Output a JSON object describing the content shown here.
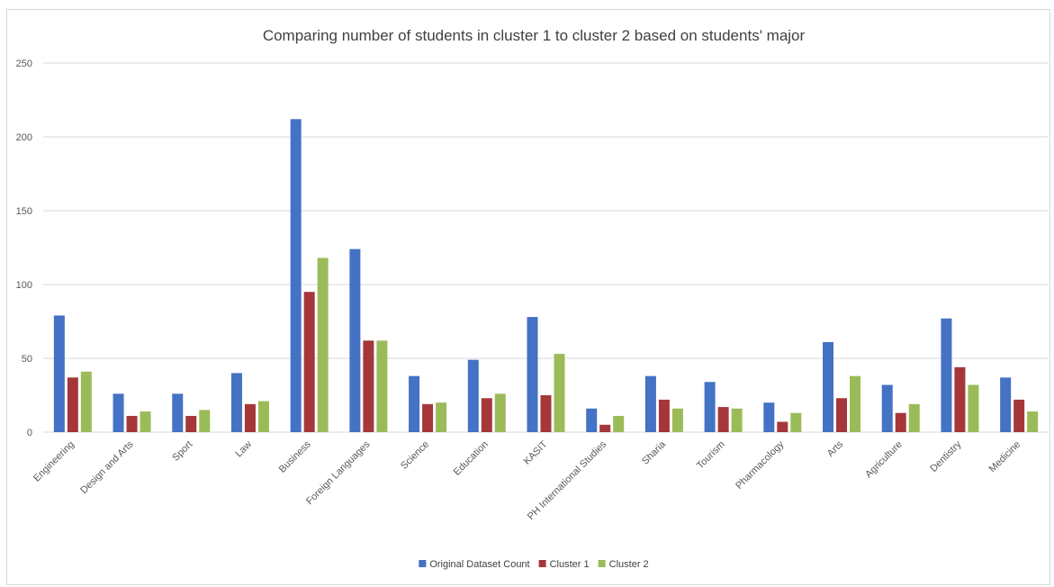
{
  "chart_data": {
    "type": "bar",
    "title": "Comparing number of students in cluster 1 to cluster 2 based on students' major",
    "xlabel": "",
    "ylabel": "",
    "ylim": [
      0,
      250
    ],
    "yticks": [
      0,
      50,
      100,
      150,
      200,
      250
    ],
    "grid": true,
    "legend_position": "bottom",
    "categories": [
      "Engineering",
      "Design and Arts",
      "Sport",
      "Law",
      "Business",
      "Foreign Languages",
      "Science",
      "Education",
      "KASIT",
      "PH International Studies",
      "Sharia",
      "Tourism",
      "Pharmacology",
      "Arts",
      "Agriculture",
      "Dentistry",
      "Medicine"
    ],
    "series": [
      {
        "name": "Original Dataset Count",
        "color": "#4472C4",
        "values": [
          79,
          26,
          26,
          40,
          212,
          124,
          38,
          49,
          78,
          16,
          38,
          34,
          20,
          61,
          32,
          77,
          37
        ]
      },
      {
        "name": "Cluster 1",
        "color": "#A5373A",
        "values": [
          37,
          11,
          11,
          19,
          95,
          62,
          19,
          23,
          25,
          5,
          22,
          17,
          7,
          23,
          13,
          44,
          22
        ]
      },
      {
        "name": "Cluster 2",
        "color": "#9BBB59",
        "values": [
          41,
          14,
          15,
          21,
          118,
          62,
          20,
          26,
          53,
          11,
          16,
          16,
          13,
          38,
          19,
          32,
          14
        ]
      }
    ]
  }
}
